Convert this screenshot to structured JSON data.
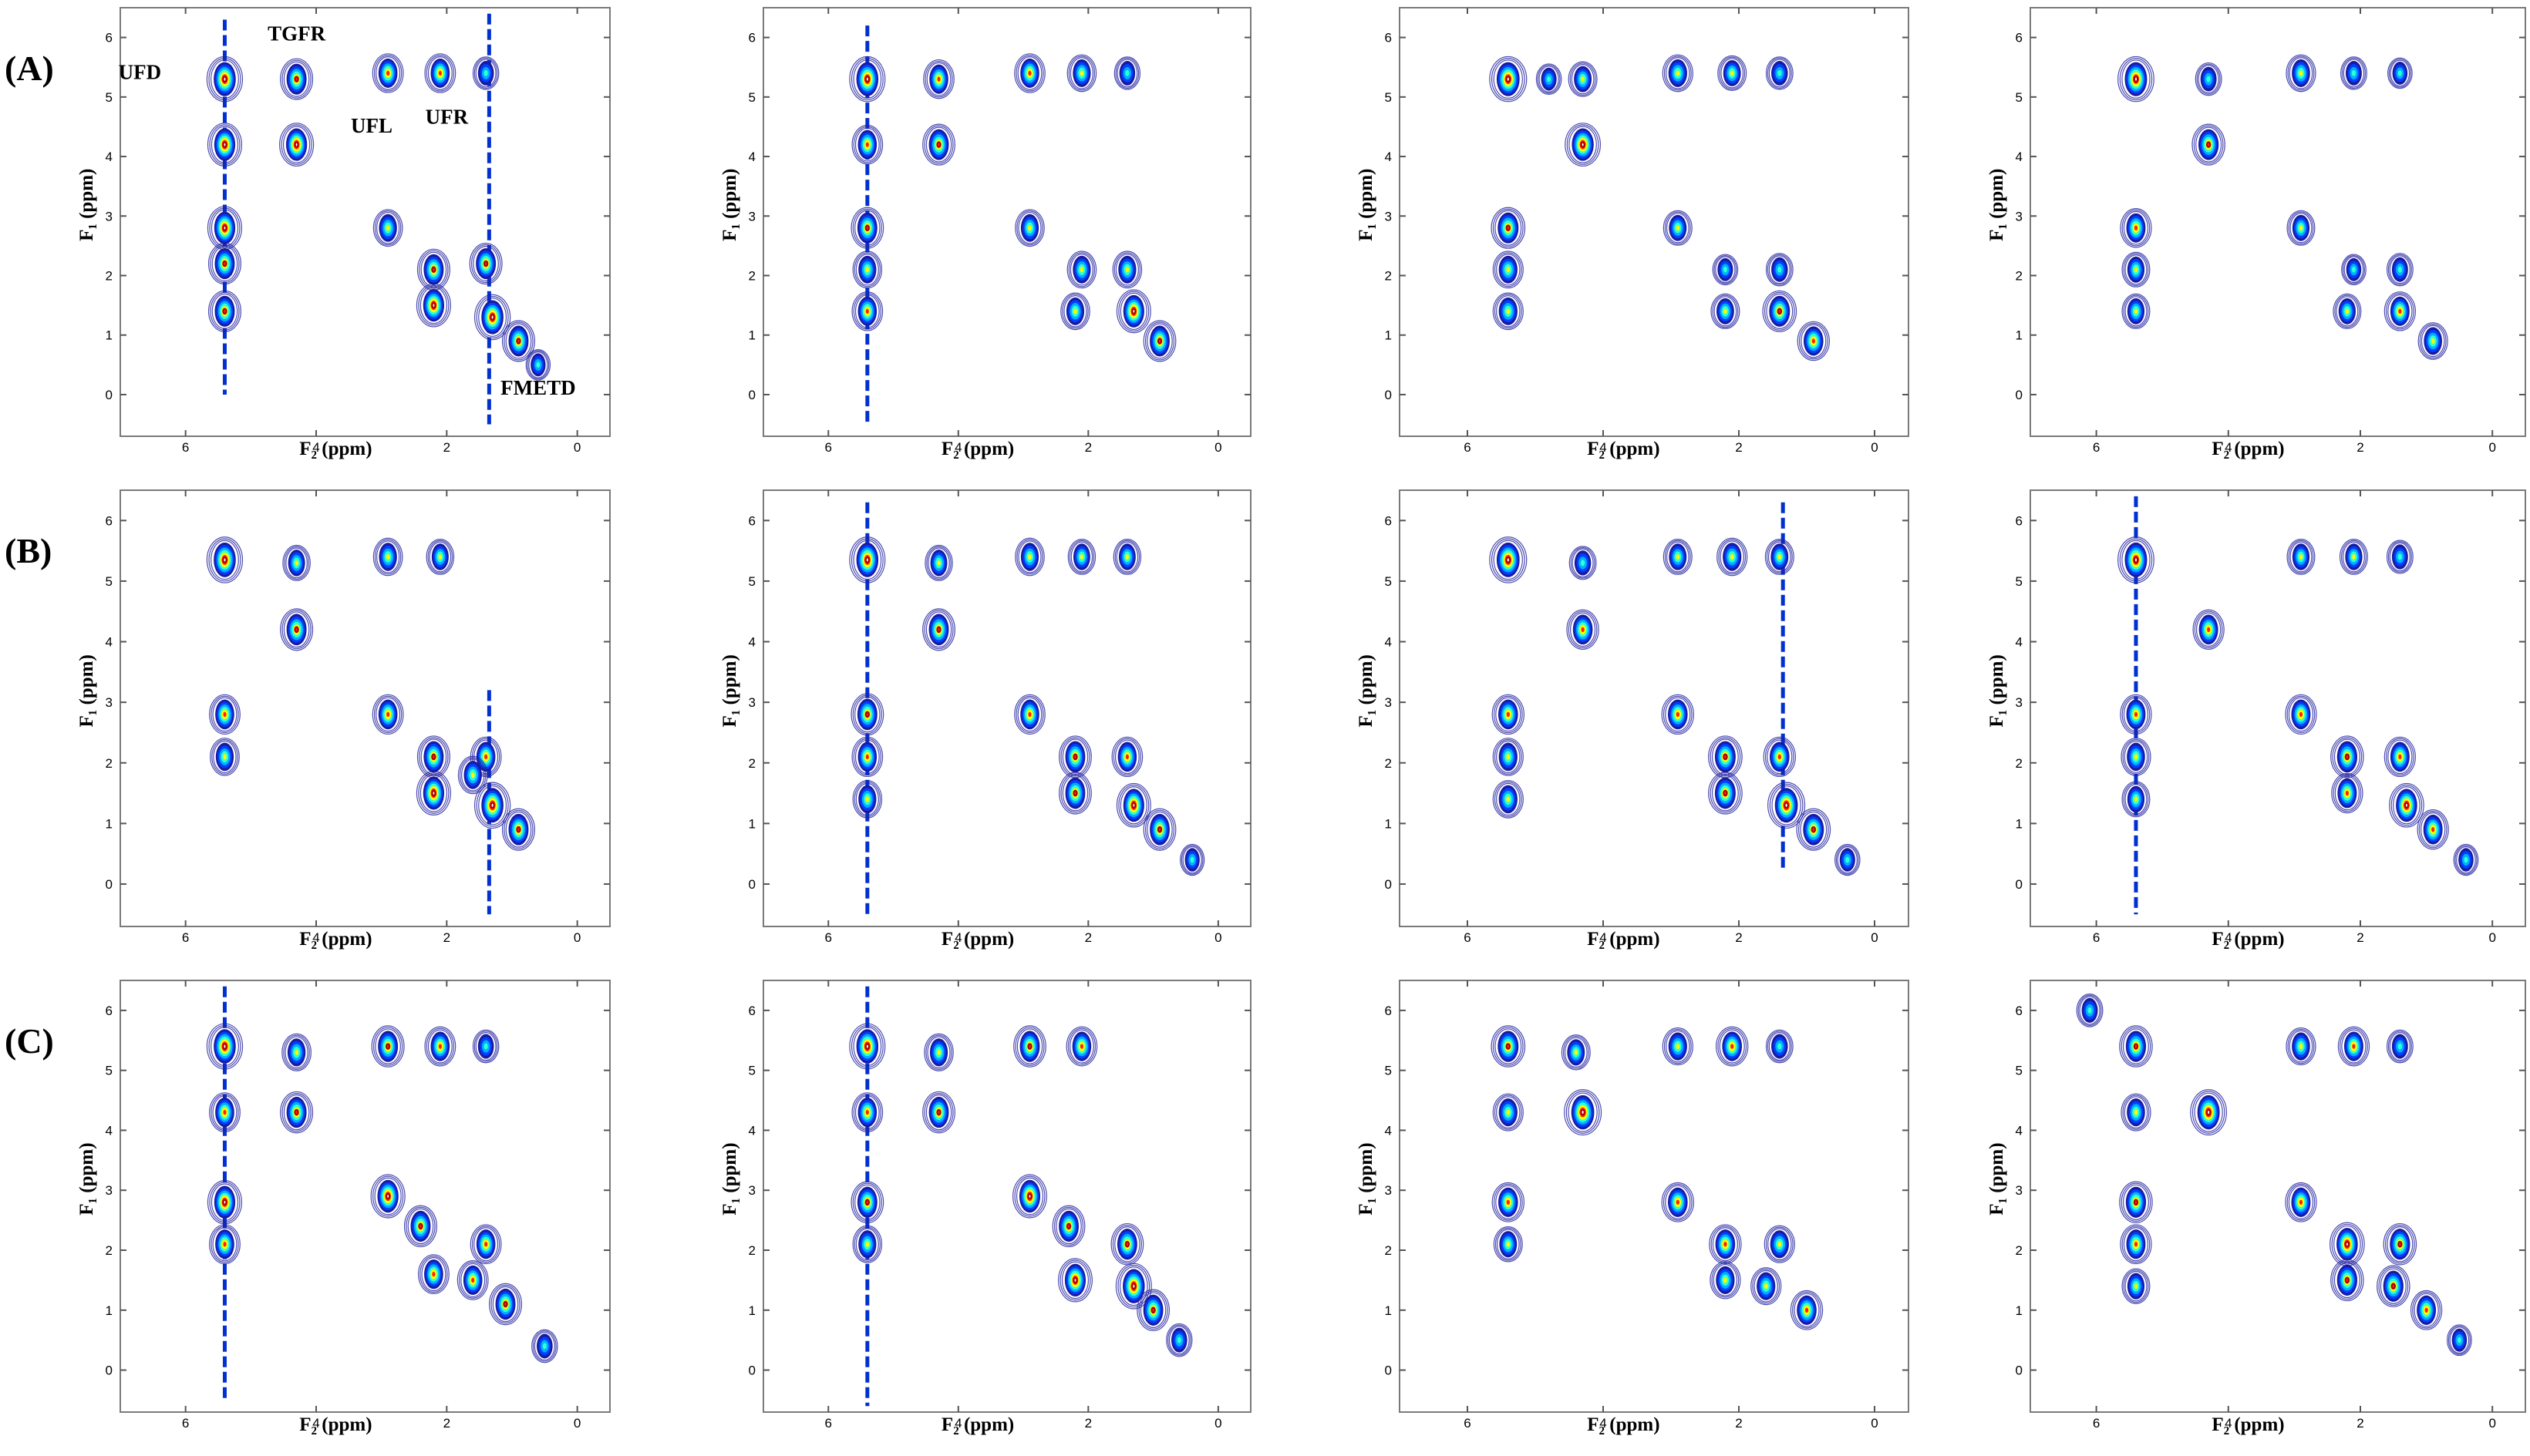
{
  "figure": {
    "row_labels": [
      "(A)",
      "(B)",
      "(C)"
    ]
  },
  "chart_data": {
    "type": "contour",
    "layout": "grid-3x4",
    "xlabel": "F₂ (ppm)",
    "ylabel": "F₁ (ppm)",
    "xlim": [
      7.0,
      -0.5
    ],
    "ylim": [
      -0.7,
      6.5
    ],
    "x_ticks": [
      6,
      4,
      2,
      0
    ],
    "y_ticks": [
      0,
      1,
      2,
      3,
      4,
      5,
      6
    ],
    "colorscale": [
      "#1a1aa0",
      "#0040ff",
      "#00b0ff",
      "#30ffd0",
      "#ffff00",
      "#ff2000",
      "#ffffff"
    ],
    "annotations": [
      {
        "text": "UFD",
        "x": 6.7,
        "y": 5.3
      },
      {
        "text": "TGFR",
        "x": 4.3,
        "y": 5.95
      },
      {
        "text": "UFL",
        "x": 3.15,
        "y": 4.4
      },
      {
        "text": "UFR",
        "x": 2.0,
        "y": 4.55
      },
      {
        "text": "FMETD",
        "x": 0.6,
        "y": 0.0
      }
    ],
    "panels": [
      {
        "row": "A",
        "col": 1,
        "peaks": [
          [
            5.4,
            5.3,
            1.0
          ],
          [
            5.4,
            4.2,
            0.9
          ],
          [
            5.4,
            2.8,
            0.9
          ],
          [
            5.4,
            2.2,
            0.8
          ],
          [
            5.4,
            1.4,
            0.8
          ],
          [
            4.3,
            5.3,
            0.8
          ],
          [
            4.3,
            4.2,
            0.9
          ],
          [
            2.9,
            5.4,
            0.7
          ],
          [
            2.1,
            5.4,
            0.7
          ],
          [
            1.4,
            5.4,
            0.4
          ],
          [
            2.9,
            2.8,
            0.6
          ],
          [
            2.2,
            2.1,
            0.8
          ],
          [
            2.2,
            1.5,
            0.9
          ],
          [
            1.4,
            2.2,
            0.8
          ],
          [
            1.3,
            1.3,
            1.0
          ],
          [
            0.9,
            0.9,
            0.8
          ],
          [
            0.6,
            0.5,
            0.3
          ]
        ],
        "ridges": [
          [
            5.4,
            0.0,
            6.3
          ],
          [
            1.35,
            -0.5,
            6.4
          ]
        ]
      },
      {
        "row": "A",
        "col": 2,
        "peaks": [
          [
            5.4,
            5.3,
            1.0
          ],
          [
            5.4,
            4.2,
            0.7
          ],
          [
            5.4,
            2.8,
            0.8
          ],
          [
            5.4,
            2.1,
            0.6
          ],
          [
            5.4,
            1.4,
            0.7
          ],
          [
            4.3,
            5.3,
            0.7
          ],
          [
            4.3,
            4.2,
            0.8
          ],
          [
            2.9,
            5.4,
            0.7
          ],
          [
            2.1,
            5.4,
            0.6
          ],
          [
            1.4,
            5.4,
            0.4
          ],
          [
            2.9,
            2.8,
            0.6
          ],
          [
            2.1,
            2.1,
            0.6
          ],
          [
            2.2,
            1.4,
            0.6
          ],
          [
            1.4,
            2.1,
            0.6
          ],
          [
            1.3,
            1.4,
            0.9
          ],
          [
            0.9,
            0.9,
            0.8
          ]
        ],
        "ridges": [
          [
            5.4,
            -0.5,
            6.2
          ]
        ]
      },
      {
        "row": "A",
        "col": 3,
        "peaks": [
          [
            5.4,
            5.3,
            1.0
          ],
          [
            5.4,
            2.8,
            0.8
          ],
          [
            5.4,
            2.1,
            0.6
          ],
          [
            5.4,
            1.4,
            0.6
          ],
          [
            4.8,
            5.3,
            0.3
          ],
          [
            4.3,
            5.3,
            0.5
          ],
          [
            4.3,
            4.2,
            0.9
          ],
          [
            2.9,
            5.4,
            0.6
          ],
          [
            2.1,
            5.4,
            0.5
          ],
          [
            1.4,
            5.4,
            0.4
          ],
          [
            2.9,
            2.8,
            0.5
          ],
          [
            2.2,
            2.1,
            0.3
          ],
          [
            2.2,
            1.4,
            0.5
          ],
          [
            1.4,
            1.4,
            0.8
          ],
          [
            0.9,
            0.9,
            0.7
          ],
          [
            1.4,
            2.1,
            0.4
          ]
        ],
        "ridges": []
      },
      {
        "row": "A",
        "col": 4,
        "peaks": [
          [
            5.4,
            5.3,
            1.0
          ],
          [
            5.4,
            2.8,
            0.7
          ],
          [
            5.4,
            2.1,
            0.5
          ],
          [
            5.4,
            1.4,
            0.5
          ],
          [
            4.3,
            5.3,
            0.4
          ],
          [
            4.3,
            4.2,
            0.8
          ],
          [
            2.9,
            5.4,
            0.6
          ],
          [
            2.1,
            5.4,
            0.4
          ],
          [
            1.4,
            5.4,
            0.3
          ],
          [
            2.9,
            2.8,
            0.5
          ],
          [
            2.1,
            2.1,
            0.3
          ],
          [
            2.2,
            1.4,
            0.5
          ],
          [
            1.4,
            1.4,
            0.7
          ],
          [
            0.9,
            0.9,
            0.6
          ],
          [
            1.4,
            2.1,
            0.4
          ]
        ],
        "ridges": []
      },
      {
        "row": "B",
        "col": 1,
        "peaks": [
          [
            5.4,
            5.35,
            1.0
          ],
          [
            5.4,
            2.8,
            0.7
          ],
          [
            5.4,
            2.1,
            0.6
          ],
          [
            4.3,
            5.3,
            0.5
          ],
          [
            4.3,
            4.2,
            0.8
          ],
          [
            2.9,
            5.4,
            0.6
          ],
          [
            2.1,
            5.4,
            0.5
          ],
          [
            2.9,
            2.8,
            0.7
          ],
          [
            2.2,
            2.1,
            0.8
          ],
          [
            2.2,
            1.5,
            0.9
          ],
          [
            1.4,
            2.1,
            0.7
          ],
          [
            1.3,
            1.3,
            1.0
          ],
          [
            0.9,
            0.9,
            0.8
          ],
          [
            1.6,
            1.8,
            0.6
          ]
        ],
        "ridges": [
          [
            1.35,
            -0.5,
            3.2
          ]
        ]
      },
      {
        "row": "B",
        "col": 2,
        "peaks": [
          [
            5.4,
            5.35,
            1.0
          ],
          [
            5.4,
            2.8,
            0.8
          ],
          [
            5.4,
            2.1,
            0.7
          ],
          [
            5.4,
            1.4,
            0.6
          ],
          [
            4.3,
            5.3,
            0.5
          ],
          [
            4.3,
            4.2,
            0.8
          ],
          [
            2.9,
            5.4,
            0.6
          ],
          [
            2.1,
            5.4,
            0.5
          ],
          [
            1.4,
            5.4,
            0.5
          ],
          [
            2.9,
            2.8,
            0.7
          ],
          [
            2.2,
            2.1,
            0.8
          ],
          [
            2.2,
            1.5,
            0.8
          ],
          [
            1.4,
            2.1,
            0.7
          ],
          [
            1.3,
            1.3,
            0.9
          ],
          [
            0.9,
            0.9,
            0.8
          ],
          [
            0.4,
            0.4,
            0.3
          ]
        ],
        "ridges": [
          [
            5.4,
            -0.5,
            6.3
          ]
        ]
      },
      {
        "row": "B",
        "col": 3,
        "peaks": [
          [
            5.4,
            5.35,
            1.0
          ],
          [
            5.4,
            2.8,
            0.7
          ],
          [
            5.4,
            2.1,
            0.6
          ],
          [
            5.4,
            1.4,
            0.6
          ],
          [
            4.3,
            5.3,
            0.4
          ],
          [
            4.3,
            4.2,
            0.7
          ],
          [
            2.9,
            5.4,
            0.5
          ],
          [
            2.1,
            5.4,
            0.6
          ],
          [
            1.4,
            5.4,
            0.5
          ],
          [
            2.9,
            2.8,
            0.7
          ],
          [
            2.2,
            2.1,
            0.8
          ],
          [
            2.2,
            1.5,
            0.8
          ],
          [
            1.4,
            2.1,
            0.7
          ],
          [
            1.3,
            1.3,
            1.0
          ],
          [
            0.9,
            0.9,
            0.8
          ],
          [
            0.4,
            0.4,
            0.3
          ]
        ],
        "ridges": [
          [
            1.35,
            0.2,
            6.3
          ]
        ]
      },
      {
        "row": "B",
        "col": 4,
        "peaks": [
          [
            5.4,
            5.35,
            1.0
          ],
          [
            5.4,
            2.8,
            0.7
          ],
          [
            5.4,
            2.1,
            0.6
          ],
          [
            5.4,
            1.4,
            0.5
          ],
          [
            4.3,
            4.2,
            0.7
          ],
          [
            2.9,
            5.4,
            0.5
          ],
          [
            2.1,
            5.4,
            0.5
          ],
          [
            1.4,
            5.4,
            0.4
          ],
          [
            2.9,
            2.8,
            0.7
          ],
          [
            2.2,
            2.1,
            0.8
          ],
          [
            2.2,
            1.5,
            0.7
          ],
          [
            1.4,
            2.1,
            0.7
          ],
          [
            1.3,
            1.3,
            0.9
          ],
          [
            0.9,
            0.9,
            0.7
          ],
          [
            0.4,
            0.4,
            0.3
          ]
        ],
        "ridges": [
          [
            5.4,
            -0.5,
            6.4
          ]
        ]
      },
      {
        "row": "C",
        "col": 1,
        "peaks": [
          [
            5.4,
            5.4,
            1.0
          ],
          [
            5.4,
            4.3,
            0.7
          ],
          [
            5.4,
            2.8,
            0.9
          ],
          [
            5.4,
            2.1,
            0.7
          ],
          [
            4.3,
            5.3,
            0.6
          ],
          [
            4.3,
            4.3,
            0.8
          ],
          [
            2.9,
            5.4,
            0.8
          ],
          [
            2.1,
            5.4,
            0.7
          ],
          [
            1.4,
            5.4,
            0.4
          ],
          [
            2.9,
            2.9,
            0.9
          ],
          [
            2.4,
            2.4,
            0.8
          ],
          [
            2.2,
            1.6,
            0.7
          ],
          [
            1.4,
            2.1,
            0.7
          ],
          [
            1.6,
            1.5,
            0.7
          ],
          [
            1.1,
            1.1,
            0.8
          ],
          [
            0.5,
            0.4,
            0.4
          ]
        ],
        "ridges": [
          [
            5.4,
            -0.5,
            6.4
          ]
        ]
      },
      {
        "row": "C",
        "col": 2,
        "peaks": [
          [
            5.4,
            5.4,
            1.0
          ],
          [
            5.4,
            4.3,
            0.7
          ],
          [
            5.4,
            2.8,
            0.8
          ],
          [
            5.4,
            2.1,
            0.6
          ],
          [
            4.3,
            5.3,
            0.6
          ],
          [
            4.3,
            4.3,
            0.8
          ],
          [
            2.9,
            5.4,
            0.8
          ],
          [
            2.1,
            5.4,
            0.7
          ],
          [
            2.9,
            2.9,
            0.9
          ],
          [
            2.3,
            2.4,
            0.8
          ],
          [
            2.2,
            1.5,
            0.9
          ],
          [
            1.4,
            2.1,
            0.8
          ],
          [
            1.3,
            1.4,
            1.0
          ],
          [
            1.0,
            1.0,
            0.8
          ],
          [
            0.6,
            0.5,
            0.4
          ]
        ],
        "ridges": [
          [
            5.4,
            -0.6,
            6.4
          ]
        ]
      },
      {
        "row": "C",
        "col": 3,
        "peaks": [
          [
            5.4,
            5.4,
            0.8
          ],
          [
            5.4,
            4.3,
            0.6
          ],
          [
            5.4,
            2.8,
            0.7
          ],
          [
            5.4,
            2.1,
            0.5
          ],
          [
            4.3,
            4.3,
            1.0
          ],
          [
            4.4,
            5.3,
            0.5
          ],
          [
            2.9,
            5.4,
            0.6
          ],
          [
            2.1,
            5.4,
            0.7
          ],
          [
            1.4,
            5.4,
            0.4
          ],
          [
            2.9,
            2.8,
            0.7
          ],
          [
            2.2,
            2.1,
            0.7
          ],
          [
            2.2,
            1.5,
            0.6
          ],
          [
            1.4,
            2.1,
            0.6
          ],
          [
            1.6,
            1.4,
            0.6
          ],
          [
            1.0,
            1.0,
            0.7
          ]
        ],
        "ridges": []
      },
      {
        "row": "C",
        "col": 4,
        "peaks": [
          [
            6.1,
            6.0,
            0.4
          ],
          [
            5.4,
            5.4,
            0.8
          ],
          [
            5.4,
            4.3,
            0.6
          ],
          [
            5.4,
            2.8,
            0.8
          ],
          [
            5.4,
            2.1,
            0.7
          ],
          [
            5.4,
            1.4,
            0.5
          ],
          [
            4.3,
            4.3,
            1.0
          ],
          [
            2.9,
            5.4,
            0.6
          ],
          [
            2.1,
            5.4,
            0.7
          ],
          [
            1.4,
            5.4,
            0.4
          ],
          [
            2.9,
            2.8,
            0.7
          ],
          [
            2.2,
            2.1,
            0.9
          ],
          [
            2.2,
            1.5,
            0.8
          ],
          [
            1.4,
            2.1,
            0.8
          ],
          [
            1.5,
            1.4,
            0.8
          ],
          [
            1.0,
            1.0,
            0.7
          ],
          [
            0.5,
            0.5,
            0.3
          ]
        ],
        "ridges": []
      }
    ]
  }
}
